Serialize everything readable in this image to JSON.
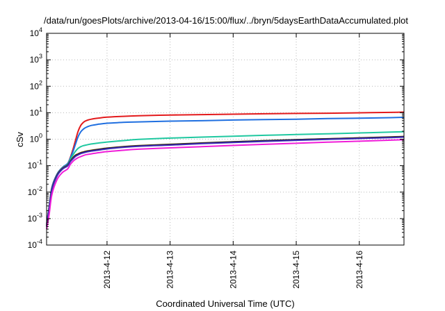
{
  "chart_data": {
    "type": "line",
    "title": "/data/run/goesPlots/archive/2013-04-16/15:00/flux/../bryn/5daysEarthDataAccumulated.plot",
    "xlabel": "Coordinated Universal Time (UTC)",
    "ylabel": "cSv",
    "yscale": "log",
    "ylim": [
      0.0001,
      10000
    ],
    "y_ticks": [
      {
        "value": 0.0001,
        "base": "10",
        "exp": "-4"
      },
      {
        "value": 0.001,
        "base": "10",
        "exp": "-3"
      },
      {
        "value": 0.01,
        "base": "10",
        "exp": "-2"
      },
      {
        "value": 0.1,
        "base": "10",
        "exp": "-1"
      },
      {
        "value": 1,
        "base": "10",
        "exp": "0"
      },
      {
        "value": 10,
        "base": "10",
        "exp": "1"
      },
      {
        "value": 100,
        "base": "10",
        "exp": "2"
      },
      {
        "value": 1000,
        "base": "10",
        "exp": "3"
      },
      {
        "value": 10000,
        "base": "10",
        "exp": "4"
      }
    ],
    "xlim": [
      "2013-04-11T01:00",
      "2013-04-16T17:00"
    ],
    "x_ticks": [
      {
        "value": "2013-04-12T00:00",
        "label": "2013-4-12"
      },
      {
        "value": "2013-04-13T00:00",
        "label": "2013-4-13"
      },
      {
        "value": "2013-04-14T00:00",
        "label": "2013-4-14"
      },
      {
        "value": "2013-04-15T00:00",
        "label": "2013-4-15"
      },
      {
        "value": "2013-04-16T00:00",
        "label": "2013-4-16"
      }
    ],
    "grid": true,
    "x": [
      "2013-04-11T01:00",
      "2013-04-11T02:00",
      "2013-04-11T03:00",
      "2013-04-11T05:00",
      "2013-04-11T07:00",
      "2013-04-11T09:00",
      "2013-04-11T10:00",
      "2013-04-11T11:00",
      "2013-04-11T12:00",
      "2013-04-11T13:00",
      "2013-04-11T14:00",
      "2013-04-11T15:00",
      "2013-04-11T16:00",
      "2013-04-11T18:00",
      "2013-04-11T21:00",
      "2013-04-12T00:00",
      "2013-04-12T06:00",
      "2013-04-12T12:00",
      "2013-04-13T00:00",
      "2013-04-13T12:00",
      "2013-04-14T00:00",
      "2013-04-14T12:00",
      "2013-04-15T00:00",
      "2013-04-15T12:00",
      "2013-04-16T00:00",
      "2013-04-16T12:00",
      "2013-04-16T17:00"
    ],
    "series": [
      {
        "color": "#e31a1c",
        "values": [
          0.0006,
          0.003,
          0.015,
          0.048,
          0.085,
          0.12,
          0.2,
          0.4,
          0.9,
          2.0,
          3.3,
          4.3,
          5.0,
          5.7,
          6.3,
          6.8,
          7.3,
          7.7,
          8.2,
          8.5,
          8.8,
          9.1,
          9.4,
          9.6,
          9.9,
          10.3,
          10.6
        ]
      },
      {
        "color": "#1f6fe0",
        "values": [
          0.0006,
          0.003,
          0.015,
          0.048,
          0.085,
          0.12,
          0.19,
          0.33,
          0.65,
          1.25,
          1.9,
          2.4,
          2.8,
          3.3,
          3.7,
          4.0,
          4.3,
          4.5,
          4.8,
          5.0,
          5.3,
          5.5,
          5.7,
          6.0,
          6.2,
          6.5,
          6.7
        ]
      },
      {
        "color": "#1fc8a0",
        "values": [
          0.0005,
          0.0025,
          0.013,
          0.045,
          0.08,
          0.11,
          0.17,
          0.25,
          0.35,
          0.45,
          0.52,
          0.57,
          0.6,
          0.66,
          0.72,
          0.78,
          0.88,
          0.98,
          1.1,
          1.2,
          1.3,
          1.4,
          1.5,
          1.6,
          1.72,
          1.85,
          1.92
        ]
      },
      {
        "color": "#8a5a00",
        "values": [
          0.0005,
          0.0025,
          0.013,
          0.044,
          0.078,
          0.105,
          0.15,
          0.2,
          0.25,
          0.28,
          0.31,
          0.33,
          0.35,
          0.38,
          0.42,
          0.46,
          0.52,
          0.57,
          0.64,
          0.72,
          0.8,
          0.88,
          0.96,
          1.04,
          1.12,
          1.22,
          1.27
        ]
      },
      {
        "color": "#1a1a1a",
        "values": [
          0.0005,
          0.0024,
          0.0125,
          0.043,
          0.076,
          0.102,
          0.145,
          0.19,
          0.24,
          0.27,
          0.3,
          0.32,
          0.34,
          0.37,
          0.41,
          0.45,
          0.51,
          0.56,
          0.63,
          0.71,
          0.79,
          0.87,
          0.95,
          1.03,
          1.11,
          1.2,
          1.25
        ]
      },
      {
        "color": "#3d2ab8",
        "values": [
          0.0005,
          0.0023,
          0.012,
          0.041,
          0.073,
          0.098,
          0.14,
          0.18,
          0.225,
          0.255,
          0.285,
          0.305,
          0.325,
          0.355,
          0.39,
          0.43,
          0.49,
          0.54,
          0.6,
          0.68,
          0.75,
          0.83,
          0.91,
          0.99,
          1.06,
          1.15,
          1.2
        ]
      },
      {
        "color": "#f01cd8",
        "values": [
          0.0004,
          0.0015,
          0.008,
          0.03,
          0.055,
          0.075,
          0.11,
          0.145,
          0.175,
          0.2,
          0.22,
          0.24,
          0.26,
          0.28,
          0.31,
          0.34,
          0.38,
          0.42,
          0.47,
          0.52,
          0.58,
          0.64,
          0.7,
          0.77,
          0.84,
          0.92,
          0.96
        ]
      }
    ]
  }
}
